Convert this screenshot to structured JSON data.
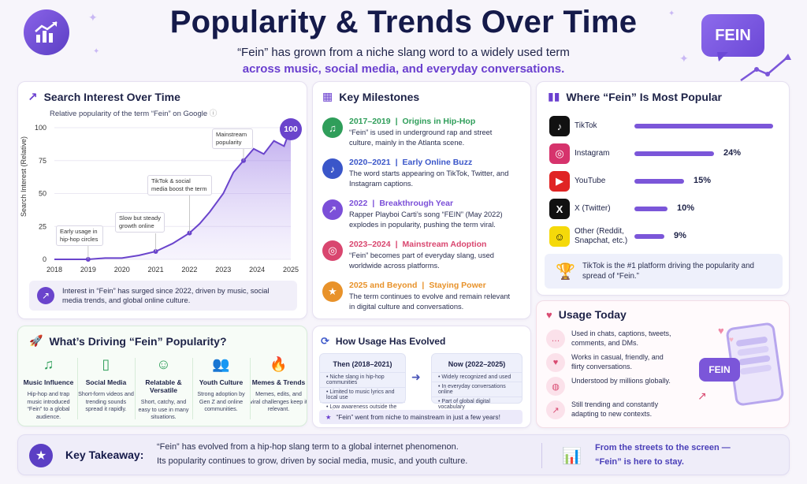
{
  "header": {
    "title": "Popularity & Trends Over Time",
    "subtitle_line1": "“Fein” has grown from a niche slang word to a widely used term",
    "subtitle_line2": "across music, social media, and everyday conversations.",
    "badge": "FEIN"
  },
  "search_interest": {
    "title": "Search Interest Over Time",
    "subtitle": "Relative popularity of the term “Fein” on Google",
    "ylabel": "Search Interest (Relative)",
    "peak_label": "100",
    "notes": {
      "early": "Early usage in hip-hop circles",
      "slow": "Slow but steady growth online",
      "tiktok": "TikTok & social media boost the term",
      "mainstream": "Mainstream popularity"
    },
    "footer": "Interest in “Fein” has surged since 2022, driven by music, social media trends, and global online culture."
  },
  "chart_data": {
    "type": "area",
    "x": [
      2018,
      2018.5,
      2019,
      2019.5,
      2020,
      2020.5,
      2021,
      2021.5,
      2022,
      2022.3,
      2022.6,
      2023,
      2023.3,
      2023.6,
      2023.9,
      2024.2,
      2024.5,
      2024.8,
      2025
    ],
    "y": [
      0,
      0,
      0,
      1,
      1,
      3,
      6,
      12,
      20,
      27,
      36,
      50,
      66,
      75,
      84,
      80,
      90,
      86,
      100
    ],
    "xticks": [
      "2018",
      "2019",
      "2020",
      "2021",
      "2022",
      "2023",
      "2024",
      "2025"
    ],
    "yticks": [
      "0",
      "25",
      "50",
      "75",
      "100"
    ],
    "xlim": [
      2018,
      2025
    ],
    "ylim": [
      0,
      100
    ],
    "title": "Search Interest Over Time",
    "ylabel": "Search Interest (Relative)",
    "xlabel": ""
  },
  "milestones": {
    "title": "Key Milestones",
    "items": [
      {
        "years": "2017–2019",
        "label": "Origins in Hip-Hop",
        "text": "“Fein” is used in underground rap and street culture, mainly in the Atlanta scene.",
        "color": "#2f9e5a",
        "icon": "♫"
      },
      {
        "years": "2020–2021",
        "label": "Early Online Buzz",
        "text": "The word starts appearing on TikTok, Twitter, and Instagram captions.",
        "color": "#3a56c9",
        "icon": "♪"
      },
      {
        "years": "2022",
        "label": "Breakthrough Year",
        "text": "Rapper Playboi Carti’s song “FEIN” (May 2022) explodes in popularity, pushing the term viral.",
        "color": "#7b4fd8",
        "icon": "↗"
      },
      {
        "years": "2023–2024",
        "label": "Mainstream Adoption",
        "text": "“Fein” becomes part of everyday slang, used worldwide across platforms.",
        "color": "#d9466f",
        "icon": "◎"
      },
      {
        "years": "2025 and Beyond",
        "label": "Staying Power",
        "text": "The term continues to evolve and remain relevant in digital culture and conversations.",
        "color": "#e8922a",
        "icon": "★"
      }
    ]
  },
  "platforms": {
    "title": "Where “Fein” Is Most Popular",
    "items": [
      {
        "name": "TikTok",
        "name2": "",
        "pct": "42%",
        "value": 42,
        "color": "#111111",
        "icon": "♪"
      },
      {
        "name": "Instagram",
        "name2": "",
        "pct": "24%",
        "value": 24,
        "color": "#d6336c",
        "icon": "◎"
      },
      {
        "name": "YouTube",
        "name2": "",
        "pct": "15%",
        "value": 15,
        "color": "#e02424",
        "icon": "▶"
      },
      {
        "name": "X (Twitter)",
        "name2": "",
        "pct": "10%",
        "value": 10,
        "color": "#111111",
        "icon": "X"
      },
      {
        "name": "Other (Reddit,",
        "name2": "Snapchat, etc.)",
        "pct": "9%",
        "value": 9,
        "color": "#f5d90a",
        "icon": "☺"
      }
    ],
    "footer": "TikTok is the #1 platform driving the popularity and spread of “Fein.”"
  },
  "drivers": {
    "title": "What’s Driving “Fein” Popularity?",
    "items": [
      {
        "icon": "♫",
        "title": "Music Influence",
        "text": "Hip-hop and trap music introduced “Fein” to a global audience."
      },
      {
        "icon": "▯",
        "title": "Social Media",
        "text": "Short-form videos and trending sounds spread it rapidly."
      },
      {
        "icon": "☺",
        "title": "Relatable & Versatile",
        "text": "Short, catchy, and easy to use in many situations."
      },
      {
        "icon": "👥",
        "title": "Youth Culture",
        "text": "Strong adoption by Gen Z and online communities."
      },
      {
        "icon": "🔥",
        "title": "Memes & Trends",
        "text": "Memes, edits, and viral challenges keep it relevant."
      }
    ]
  },
  "evolution": {
    "title": "How Usage Has Evolved",
    "then_title": "Then (2018–2021)",
    "then_items": [
      "Niche slang in hip-hop communities",
      "Limited to music lyrics and local use",
      "Low awareness outside the culture"
    ],
    "now_title": "Now (2022–2025)",
    "now_items": [
      "Widely recognized and used",
      "In everyday conversations online",
      "Part of global digital vocabulary"
    ],
    "footer": "“Fein” went from niche to mainstream in just a few years!"
  },
  "usage_today": {
    "title": "Usage Today",
    "items": [
      {
        "icon": "…",
        "text": "Used in chats, captions, tweets, comments, and DMs."
      },
      {
        "icon": "♥",
        "text": "Works in casual, friendly, and flirty conversations."
      },
      {
        "icon": "◍",
        "text": "Understood by millions globally."
      },
      {
        "icon": "↗",
        "text": "Still trending and constantly adapting to new contexts."
      }
    ],
    "phone_badge": "FEIN"
  },
  "takeaway": {
    "label": "Key Takeaway:",
    "line1": "“Fein” has evolved from a hip-hop slang term to a global internet phenomenon.",
    "line2": "Its popularity continues to grow, driven by social media, music, and youth culture.",
    "right1": "From the streets to the screen —",
    "right2": "“Fein” is here to stay."
  },
  "colors": {
    "accent": "#6a3fcf",
    "chart_line": "#6a44cc",
    "green": "#2f9e5a"
  }
}
